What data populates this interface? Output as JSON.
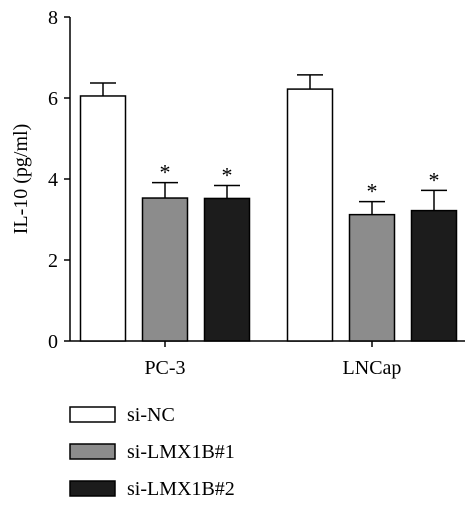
{
  "chart_data": {
    "type": "bar",
    "categories": [
      "PC-3",
      "LNCap"
    ],
    "series": [
      {
        "name": "si-NC",
        "values": [
          6.05,
          6.22
        ],
        "errors": [
          0.32,
          0.35
        ],
        "color": "#ffffff",
        "significance": [
          "",
          ""
        ]
      },
      {
        "name": "si-LMX1B#1",
        "values": [
          3.53,
          3.12
        ],
        "errors": [
          0.38,
          0.32
        ],
        "color": "#8c8c8c",
        "significance": [
          "*",
          "*"
        ]
      },
      {
        "name": "si-LMX1B#2",
        "values": [
          3.52,
          3.22
        ],
        "errors": [
          0.32,
          0.5
        ],
        "color": "#1c1c1c",
        "significance": [
          "*",
          "*"
        ]
      }
    ],
    "xlabel": "",
    "ylabel": "IL-10 (pg/ml)",
    "ylim": [
      0,
      8
    ],
    "yticks": [
      "0",
      "2",
      "4",
      "6",
      "8"
    ],
    "grid": false,
    "legend_position": "bottom-left"
  }
}
